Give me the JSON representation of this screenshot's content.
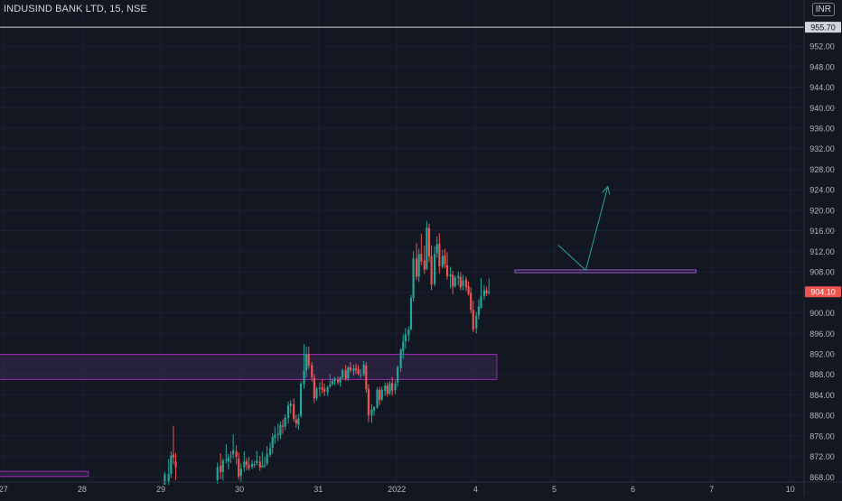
{
  "symbol_title": "INDUSIND BANK LTD, 15, NSE",
  "currency_badge": "INR",
  "colors": {
    "background": "#131722",
    "grid": "#1c2030",
    "axis_text": "#b2b5be",
    "up": "#26a69a",
    "down": "#ef5350",
    "zone_fill": "#3a2a55",
    "zone_stroke": "#9c27b0",
    "resistance_line": "#a35ed1",
    "projection_arrow": "#26a69a",
    "hline": "#d1d4dc"
  },
  "chart_data": {
    "type": "candlestick",
    "title": "INDUSIND BANK LTD, 15, NSE",
    "interval": "15",
    "exchange": "NSE",
    "currency": "INR",
    "y_axis": {
      "range": [
        867,
        961
      ],
      "tick_labels": [
        "868.00",
        "872.00",
        "876.00",
        "880.00",
        "884.00",
        "888.00",
        "892.00",
        "896.00",
        "900.00",
        "904.00",
        "908.00",
        "912.00",
        "916.00",
        "920.00",
        "924.00",
        "928.00",
        "932.00",
        "936.00",
        "940.00",
        "944.00",
        "948.00",
        "952.00"
      ],
      "position": "right"
    },
    "x_axis": {
      "tick_labels": [
        "27",
        "28",
        "29",
        "30",
        "31",
        "2022",
        "4",
        "5",
        "6",
        "7",
        "10"
      ]
    },
    "last_price": {
      "label": "904.10",
      "value": 904.1
    },
    "horizontal_line": {
      "label": "955.70",
      "value": 955.7
    },
    "zones": [
      {
        "name": "upper-demand-zone",
        "from_session": -0.1,
        "to_session": 6.27,
        "low": 887,
        "high": 891.9
      },
      {
        "name": "lower-demand-zone",
        "from_session": -0.1,
        "to_session": 1.08,
        "low": 868.1,
        "high": 869.1
      }
    ],
    "resistance_line": {
      "from_session": 6.5,
      "to_session": 8.8,
      "value": 908.1
    },
    "projection_path": [
      [
        7.05,
        913.2
      ],
      [
        7.4,
        908.3
      ],
      [
        7.68,
        924.6
      ]
    ],
    "series": [
      {
        "candles": [
          [
            2.05,
            866.5,
            869.0,
            867.0,
            868.5
          ],
          [
            2.1,
            867.0,
            871.5,
            866.5,
            868.6
          ],
          [
            2.13,
            868.6,
            873.0,
            867.8,
            872.2
          ],
          [
            2.16,
            872.4,
            878.0,
            870.5,
            871.8
          ],
          [
            2.19,
            871.0,
            872.6,
            867.4,
            869.9
          ],
          [
            2.72,
            867.4,
            870.8,
            866.6,
            869.9
          ],
          [
            2.76,
            870.2,
            872.6,
            867.6,
            868.9
          ],
          [
            2.79,
            869.0,
            871.6,
            867.3,
            871.2
          ],
          [
            2.83,
            871.2,
            874.4,
            870.6,
            871.4
          ],
          [
            2.86,
            871.0,
            872.5,
            869.4,
            871.8
          ],
          [
            2.89,
            872.1,
            873.0,
            870.7,
            872.1
          ],
          [
            2.92,
            872.4,
            876.3,
            871.5,
            873.2
          ],
          [
            2.96,
            873.0,
            874.2,
            870.4,
            871.9
          ],
          [
            2.99,
            871.6,
            872.8,
            867.5,
            868.1
          ],
          [
            3.02,
            868.2,
            870.6,
            866.9,
            869.6
          ],
          [
            3.06,
            869.9,
            873.0,
            869.0,
            871.0
          ],
          [
            3.09,
            871.0,
            871.7,
            869.3,
            870.4
          ],
          [
            3.12,
            870.4,
            871.9,
            869.2,
            869.7
          ],
          [
            3.16,
            870.0,
            871.3,
            869.5,
            870.6
          ],
          [
            3.19,
            870.5,
            871.1,
            869.7,
            870.5
          ],
          [
            3.22,
            870.7,
            873.1,
            870.2,
            871.2
          ],
          [
            3.26,
            871.0,
            872.1,
            869.2,
            869.8
          ],
          [
            3.29,
            869.9,
            872.9,
            869.8,
            870.2
          ],
          [
            3.32,
            870.1,
            871.9,
            869.8,
            870.2
          ],
          [
            3.35,
            870.6,
            874.0,
            870.2,
            872.5
          ],
          [
            3.39,
            872.3,
            874.7,
            871.9,
            873.6
          ],
          [
            3.42,
            873.7,
            876.5,
            872.5,
            875.8
          ],
          [
            3.45,
            875.6,
            877.8,
            874.5,
            876.2
          ],
          [
            3.49,
            876.2,
            878.4,
            875.0,
            876.4
          ],
          [
            3.52,
            876.2,
            878.8,
            875.4,
            878.1
          ],
          [
            3.55,
            878.0,
            879.2,
            876.4,
            877.8
          ],
          [
            3.58,
            877.8,
            880.2,
            877.1,
            879.6
          ],
          [
            3.62,
            879.5,
            882.7,
            878.4,
            881.9
          ],
          [
            3.65,
            881.8,
            883.0,
            880.4,
            882.3
          ],
          [
            3.69,
            882.2,
            883.3,
            878.8,
            879.3
          ],
          [
            3.72,
            879.2,
            880.1,
            877.6,
            878.4
          ],
          [
            3.75,
            878.2,
            880.3,
            877.2,
            879.4
          ],
          [
            3.78,
            879.9,
            886.6,
            879.5,
            886.2
          ],
          [
            3.82,
            886.1,
            893.9,
            885.2,
            888.8
          ],
          [
            3.85,
            888.8,
            893.4,
            887.4,
            891.9
          ],
          [
            3.88,
            891.9,
            893.4,
            889.1,
            889.7
          ],
          [
            3.92,
            889.8,
            890.4,
            886.6,
            887.4
          ],
          [
            3.95,
            887.3,
            888.1,
            882.4,
            883.3
          ],
          [
            3.98,
            883.4,
            885.6,
            882.9,
            885.2
          ],
          [
            4.02,
            885.2,
            886.5,
            883.7,
            885.4
          ],
          [
            4.05,
            885.5,
            887.0,
            884.3,
            885.0
          ],
          [
            4.08,
            885.2,
            886.2,
            883.8,
            884.6
          ],
          [
            4.12,
            884.5,
            885.8,
            883.8,
            885.5
          ],
          [
            4.15,
            885.7,
            888.1,
            885.3,
            886.0
          ],
          [
            4.18,
            886.1,
            887.2,
            885.8,
            886.7
          ],
          [
            4.21,
            886.7,
            887.5,
            885.9,
            887.2
          ],
          [
            4.25,
            887.0,
            887.6,
            886.0,
            886.5
          ],
          [
            4.28,
            886.4,
            887.6,
            885.6,
            887.4
          ],
          [
            4.31,
            887.4,
            889.1,
            887.1,
            888.8
          ],
          [
            4.35,
            888.8,
            889.8,
            886.8,
            887.1
          ],
          [
            4.38,
            887.2,
            889.6,
            886.7,
            889.3
          ],
          [
            4.41,
            889.4,
            890.4,
            888.3,
            888.8
          ],
          [
            4.45,
            888.6,
            889.9,
            887.8,
            889.1
          ],
          [
            4.48,
            889.2,
            890.1,
            888.1,
            888.9
          ],
          [
            4.51,
            889.0,
            889.8,
            887.8,
            888.1
          ],
          [
            4.54,
            888.0,
            889.0,
            887.2,
            888.0
          ],
          [
            4.58,
            888.0,
            890.6,
            887.6,
            889.9
          ],
          [
            4.61,
            889.7,
            890.4,
            884.4,
            885.1
          ],
          [
            4.64,
            885.2,
            886.1,
            878.7,
            880.0
          ],
          [
            4.68,
            880.0,
            882.2,
            878.5,
            881.1
          ],
          [
            4.71,
            881.0,
            881.8,
            879.9,
            881.6
          ],
          [
            4.75,
            881.5,
            885.5,
            881.3,
            885.0
          ],
          [
            4.78,
            885.0,
            885.6,
            882.0,
            883.0
          ],
          [
            4.81,
            883.1,
            885.6,
            882.8,
            885.0
          ],
          [
            4.85,
            884.8,
            886.4,
            883.9,
            885.8
          ],
          [
            4.88,
            885.8,
            886.5,
            883.7,
            884.2
          ],
          [
            4.91,
            884.3,
            886.7,
            884.0,
            886.2
          ],
          [
            4.94,
            886.3,
            887.5,
            883.9,
            884.8
          ],
          [
            4.98,
            884.9,
            886.8,
            884.1,
            886.2
          ],
          [
            5.01,
            886.4,
            889.7,
            885.6,
            889.4
          ],
          [
            5.05,
            889.2,
            893.1,
            888.5,
            892.8
          ],
          [
            5.08,
            892.5,
            895.8,
            891.0,
            894.4
          ],
          [
            5.11,
            894.5,
            897.0,
            893.0,
            895.8
          ],
          [
            5.15,
            895.6,
            897.3,
            894.4,
            896.7
          ],
          [
            5.18,
            896.8,
            903.5,
            896.6,
            902.9
          ],
          [
            5.21,
            902.9,
            912.0,
            902.2,
            910.6
          ],
          [
            5.25,
            910.6,
            913.6,
            906.4,
            907.0
          ],
          [
            5.28,
            907.1,
            912.5,
            906.0,
            911.4
          ],
          [
            5.31,
            911.5,
            915.4,
            909.3,
            910.0
          ],
          [
            5.35,
            910.2,
            913.1,
            907.6,
            908.4
          ],
          [
            5.38,
            908.5,
            917.9,
            908.3,
            916.6
          ],
          [
            5.41,
            916.5,
            917.4,
            909.9,
            911.0
          ],
          [
            5.44,
            911.1,
            913.2,
            904.4,
            905.5
          ],
          [
            5.48,
            905.6,
            913.0,
            905.2,
            911.5
          ],
          [
            5.51,
            911.6,
            914.9,
            910.7,
            913.4
          ],
          [
            5.54,
            913.5,
            915.5,
            907.7,
            909.1
          ],
          [
            5.58,
            909.0,
            912.3,
            908.6,
            911.1
          ],
          [
            5.61,
            911.2,
            912.5,
            908.7,
            909.5
          ],
          [
            5.64,
            909.3,
            911.8,
            906.5,
            907.1
          ],
          [
            5.68,
            907.1,
            909.0,
            904.8,
            907.5
          ],
          [
            5.71,
            907.4,
            908.2,
            903.6,
            905.1
          ],
          [
            5.74,
            905.2,
            907.3,
            904.9,
            906.9
          ],
          [
            5.78,
            906.8,
            908.1,
            905.3,
            907.2
          ],
          [
            5.81,
            907.0,
            907.9,
            904.4,
            904.9
          ],
          [
            5.84,
            905.2,
            907.4,
            904.4,
            906.3
          ],
          [
            5.88,
            906.5,
            907.1,
            904.2,
            905.0
          ],
          [
            5.91,
            905.2,
            906.1,
            903.4,
            903.7
          ],
          [
            5.94,
            903.9,
            905.0,
            899.9,
            900.6
          ],
          [
            5.97,
            900.6,
            902.4,
            896.2,
            896.7
          ],
          [
            6.01,
            897.0,
            900.2,
            896.0,
            899.4
          ],
          [
            6.04,
            899.5,
            902.6,
            898.7,
            901.2
          ],
          [
            6.07,
            901.0,
            906.8,
            900.8,
            903.2
          ],
          [
            6.11,
            903.3,
            905.4,
            902.5,
            904.4
          ],
          [
            6.14,
            904.4,
            905.1,
            903.3,
            903.8
          ],
          [
            6.17,
            903.9,
            906.7,
            903.5,
            904.1
          ]
        ]
      }
    ]
  }
}
